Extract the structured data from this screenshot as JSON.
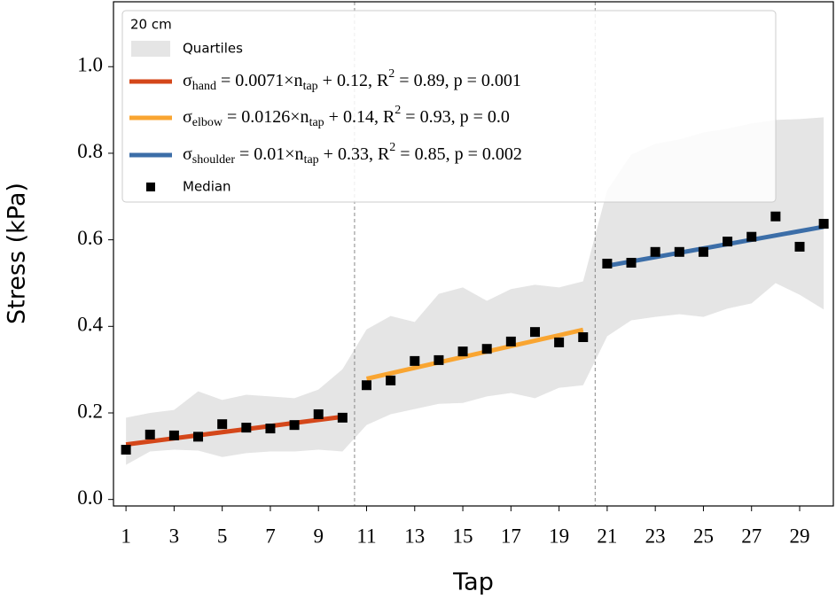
{
  "chart_data": {
    "type": "scatter",
    "xlabel": "Tap",
    "ylabel": "Stress (kPa)",
    "xlim": [
      0.48,
      30.4
    ],
    "ylim": [
      -0.015,
      1.15
    ],
    "xticks": [
      1,
      3,
      5,
      7,
      9,
      11,
      13,
      15,
      17,
      19,
      21,
      23,
      25,
      27,
      29
    ],
    "yticks": [
      {
        "value": 0,
        "label": "0.0"
      },
      {
        "value": 0.2,
        "label": "0.2"
      },
      {
        "value": 0.4,
        "label": "0.4"
      },
      {
        "value": 0.6,
        "label": "0.6"
      },
      {
        "value": 0.8,
        "label": "0.8"
      },
      {
        "value": 1,
        "label": "1.0"
      }
    ],
    "vlines": [
      10.5,
      20.5
    ],
    "legend": {
      "title": "20 cm",
      "loc": "upper left"
    },
    "series": [
      {
        "name": "Quartiles",
        "type": "band",
        "color": "#e5e5e5",
        "x": [
          1,
          2,
          3,
          4,
          5,
          6,
          7,
          8,
          9,
          10,
          11,
          12,
          13,
          14,
          15,
          16,
          17,
          18,
          19,
          20,
          21,
          22,
          23,
          24,
          25,
          26,
          27,
          28,
          29,
          30
        ],
        "upper": [
          0.189,
          0.2,
          0.207,
          0.25,
          0.23,
          0.242,
          0.238,
          0.234,
          0.254,
          0.301,
          0.393,
          0.424,
          0.41,
          0.475,
          0.49,
          0.459,
          0.486,
          0.496,
          0.49,
          0.504,
          0.715,
          0.797,
          0.822,
          0.832,
          0.848,
          0.857,
          0.869,
          0.877,
          0.879,
          0.883
        ],
        "lower": [
          0.08,
          0.111,
          0.115,
          0.113,
          0.098,
          0.107,
          0.111,
          0.111,
          0.115,
          0.111,
          0.172,
          0.197,
          0.209,
          0.221,
          0.223,
          0.238,
          0.246,
          0.234,
          0.258,
          0.264,
          0.377,
          0.414,
          0.422,
          0.428,
          0.422,
          0.441,
          0.453,
          0.5,
          0.473,
          0.439
        ]
      },
      {
        "name": [
          "σ",
          {
            "sub": "hand"
          },
          " = 0.0071×n",
          {
            "sub": "tap"
          },
          " + 0.12, R",
          {
            "sup": "2"
          },
          " = 0.89, p = 0.001"
        ],
        "type": "line",
        "color": "#d4471a",
        "x": [
          1,
          10
        ],
        "values": [
          0.127,
          0.191
        ]
      },
      {
        "name": [
          "σ",
          {
            "sub": "elbow"
          },
          " = 0.0126×n",
          {
            "sub": "tap"
          },
          " + 0.14, R",
          {
            "sup": "2"
          },
          " = 0.93, p = 0.0"
        ],
        "type": "line",
        "color": "#f9a531",
        "x": [
          11,
          20
        ],
        "values": [
          0.279,
          0.392
        ]
      },
      {
        "name": [
          "σ",
          {
            "sub": "shoulder"
          },
          " = 0.01×n",
          {
            "sub": "tap"
          },
          " + 0.33, R",
          {
            "sup": "2"
          },
          " = 0.85, p = 0.002"
        ],
        "type": "line",
        "color": "#3c6ea8",
        "x": [
          21,
          30
        ],
        "values": [
          0.54,
          0.63
        ]
      },
      {
        "name": "Median",
        "type": "scatter",
        "color": "#000000",
        "x": [
          1,
          2,
          3,
          4,
          5,
          6,
          7,
          8,
          9,
          10,
          11,
          12,
          13,
          14,
          15,
          16,
          17,
          18,
          19,
          20,
          21,
          22,
          23,
          24,
          25,
          26,
          27,
          28,
          29,
          30
        ],
        "values": [
          0.115,
          0.15,
          0.148,
          0.145,
          0.174,
          0.166,
          0.164,
          0.172,
          0.197,
          0.189,
          0.264,
          0.275,
          0.32,
          0.322,
          0.342,
          0.348,
          0.365,
          0.387,
          0.363,
          0.375,
          0.545,
          0.547,
          0.572,
          0.572,
          0.572,
          0.596,
          0.607,
          0.654,
          0.584,
          0.637
        ]
      }
    ]
  }
}
